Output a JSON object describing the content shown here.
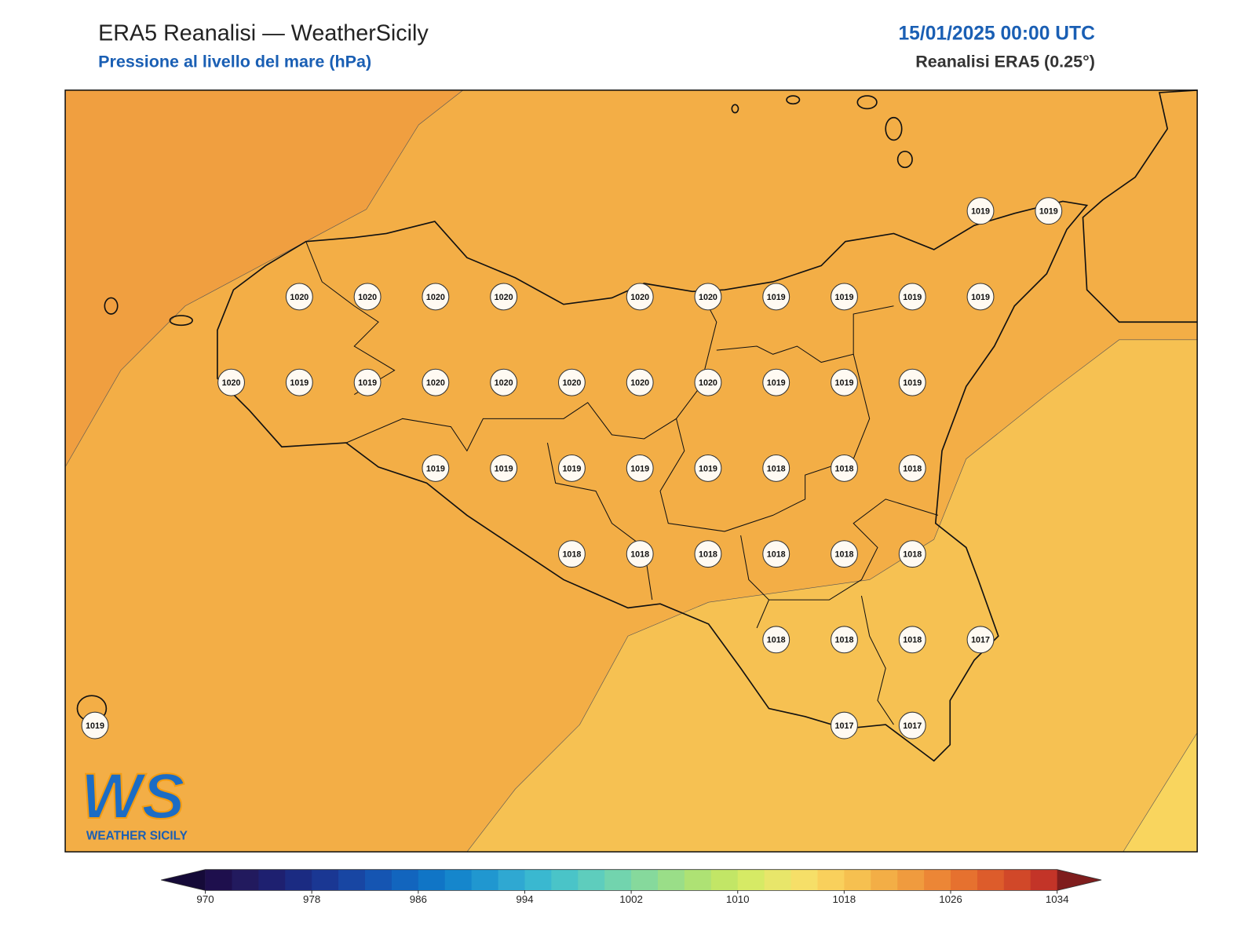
{
  "header": {
    "title": "ERA5 Reanalisi — WeatherSicily",
    "subtitle": "Pressione al livello del mare (hPa)",
    "datetime": "15/01/2025 00:00 UTC",
    "source": "Reanalisi ERA5 (0.25°)"
  },
  "stations": {
    "rows": [
      [
        null,
        null,
        null,
        null,
        null,
        null,
        null,
        null,
        null,
        null,
        null,
        null,
        null,
        1019,
        1019
      ],
      [
        null,
        null,
        null,
        1020,
        1020,
        1020,
        1020,
        null,
        1020,
        1020,
        1019,
        1019,
        1019,
        1019,
        null
      ],
      [
        null,
        null,
        1020,
        1019,
        1019,
        1020,
        1020,
        1020,
        1020,
        1020,
        1019,
        1019,
        1019,
        null,
        null
      ],
      [
        null,
        null,
        null,
        null,
        null,
        1019,
        1019,
        1019,
        1019,
        1019,
        1018,
        1018,
        1018,
        null,
        null
      ],
      [
        null,
        null,
        null,
        null,
        null,
        null,
        null,
        1018,
        1018,
        1018,
        1018,
        1018,
        1018,
        null,
        null
      ],
      [
        null,
        null,
        null,
        null,
        null,
        null,
        null,
        null,
        null,
        null,
        1018,
        1018,
        1018,
        1017,
        null
      ],
      [
        1019,
        null,
        null,
        null,
        null,
        null,
        null,
        null,
        null,
        null,
        null,
        1017,
        1017,
        null,
        null
      ]
    ]
  },
  "colorbar": {
    "clim": [
      970,
      1034
    ],
    "ticks": [
      970,
      978,
      986,
      994,
      1002,
      1010,
      1018,
      1026,
      1034
    ],
    "colors": [
      "#1e0f4d",
      "#221a5e",
      "#1e2070",
      "#1b2b82",
      "#1a3793",
      "#1846a3",
      "#1555b2",
      "#1265be",
      "#1075c6",
      "#1586cc",
      "#2097d0",
      "#2fa8d2",
      "#3ab8d0",
      "#4ac4c8",
      "#5ecdbd",
      "#72d4ae",
      "#86d99c",
      "#9ade88",
      "#aee274",
      "#c2e666",
      "#d6ea65",
      "#e8e66a",
      "#f6df68",
      "#f9d05c",
      "#f6c050",
      "#f3ae46",
      "#f09b3e",
      "#ec8636",
      "#e6712f",
      "#dd5c2b",
      "#d14829",
      "#c33428"
    ],
    "under": "#150a38",
    "over": "#7f1d1d"
  },
  "logo": {
    "mark": "WS",
    "name": "WEATHER SICILY"
  }
}
